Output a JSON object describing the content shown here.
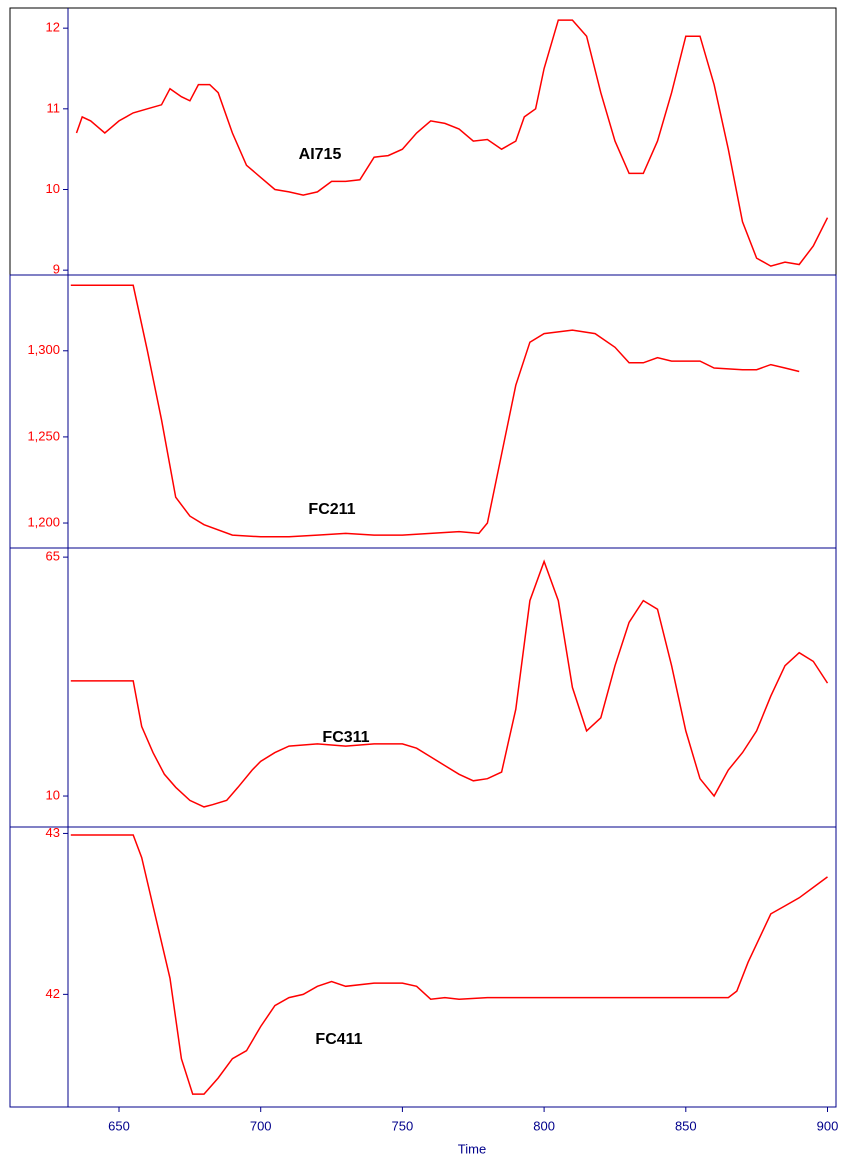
{
  "chart_data": [
    {
      "type": "line",
      "label": "AI715",
      "xlim": [
        632,
        903
      ],
      "ylim": [
        8.94,
        12.25
      ],
      "yticks": [
        9,
        10,
        11,
        12
      ],
      "series": [
        {
          "name": "AI715",
          "color": "#ff0000",
          "x": [
            635,
            637,
            640,
            645,
            650,
            655,
            660,
            665,
            668,
            672,
            675,
            678,
            682,
            685,
            690,
            695,
            700,
            705,
            710,
            715,
            720,
            725,
            730,
            735,
            740,
            745,
            750,
            755,
            760,
            765,
            770,
            775,
            780,
            785,
            790,
            793,
            797,
            800,
            805,
            810,
            815,
            820,
            825,
            830,
            835,
            840,
            845,
            850,
            855,
            860,
            865,
            870,
            875,
            880,
            885,
            890,
            895,
            900
          ],
          "values": [
            10.7,
            10.9,
            10.85,
            10.7,
            10.85,
            10.95,
            11.0,
            11.05,
            11.25,
            11.15,
            11.1,
            11.3,
            11.3,
            11.2,
            10.7,
            10.3,
            10.15,
            10.0,
            9.97,
            9.93,
            9.97,
            10.1,
            10.1,
            10.12,
            10.4,
            10.42,
            10.5,
            10.7,
            10.85,
            10.82,
            10.75,
            10.6,
            10.62,
            10.5,
            10.6,
            10.9,
            11.0,
            11.5,
            12.1,
            12.1,
            11.9,
            11.2,
            10.6,
            10.2,
            10.2,
            10.6,
            11.2,
            11.9,
            11.9,
            11.3,
            10.5,
            9.6,
            9.15,
            9.05,
            9.1,
            9.07,
            9.3,
            9.65
          ]
        }
      ]
    },
    {
      "type": "line",
      "label": "FC211",
      "xlim": [
        632,
        903
      ],
      "ylim": [
        1185.5,
        1344
      ],
      "yticks": [
        {
          "value": 1200,
          "label": "1,200"
        },
        {
          "value": 1250,
          "label": "1,250"
        },
        {
          "value": 1300,
          "label": "1,300"
        }
      ],
      "series": [
        {
          "name": "FC211",
          "color": "#ff0000",
          "x": [
            633,
            655,
            660,
            665,
            670,
            675,
            680,
            690,
            700,
            710,
            720,
            730,
            740,
            750,
            760,
            770,
            777,
            780,
            785,
            790,
            795,
            800,
            810,
            818,
            825,
            830,
            835,
            840,
            845,
            855,
            860,
            870,
            875,
            880,
            885,
            890
          ],
          "values": [
            1338,
            1338,
            1300,
            1260,
            1215,
            1204,
            1199,
            1193,
            1192,
            1192,
            1193,
            1194,
            1193,
            1193,
            1194,
            1195,
            1194,
            1200,
            1240,
            1280,
            1305,
            1310,
            1312,
            1310,
            1302,
            1293,
            1293,
            1296,
            1294,
            1294,
            1290,
            1289,
            1289,
            1292,
            1290,
            1288
          ]
        }
      ]
    },
    {
      "type": "line",
      "label": "FC311",
      "xlim": [
        632,
        903
      ],
      "ylim": [
        2.87,
        67.1
      ],
      "yticks": [
        10,
        65
      ],
      "series": [
        {
          "name": "FC311",
          "color": "#ff0000",
          "x": [
            633,
            655,
            658,
            662,
            666,
            670,
            675,
            680,
            683,
            688,
            692,
            697,
            700,
            705,
            710,
            720,
            730,
            740,
            750,
            755,
            760,
            765,
            770,
            775,
            780,
            785,
            790,
            795,
            800,
            805,
            810,
            815,
            820,
            825,
            830,
            835,
            840,
            845,
            850,
            855,
            860,
            865,
            870,
            875,
            880,
            885,
            890,
            895,
            900
          ],
          "values": [
            36.5,
            36.5,
            26,
            20,
            15,
            12,
            9,
            7.5,
            8,
            9,
            12,
            16,
            18,
            20,
            21.5,
            22,
            21.5,
            22,
            22,
            21,
            19,
            17,
            15,
            13.5,
            14,
            15.5,
            30,
            55,
            64,
            55,
            35,
            25,
            28,
            40,
            50,
            55,
            53,
            40,
            25,
            14,
            10,
            16,
            20,
            25,
            33,
            40,
            43,
            41,
            36
          ]
        }
      ]
    },
    {
      "type": "line",
      "label": "FC411",
      "xlim": [
        632,
        903
      ],
      "ylim": [
        41.3,
        43.04
      ],
      "yticks": [
        42,
        43
      ],
      "xticks": [
        650,
        700,
        750,
        800,
        850,
        900
      ],
      "xlabel": "Time",
      "series": [
        {
          "name": "FC411",
          "color": "#ff0000",
          "x": [
            633,
            655,
            658,
            662,
            668,
            672,
            676,
            680,
            685,
            690,
            695,
            700,
            705,
            710,
            715,
            720,
            725,
            730,
            740,
            750,
            755,
            760,
            765,
            770,
            780,
            800,
            865,
            868,
            872,
            880,
            885,
            890,
            900
          ],
          "values": [
            42.99,
            42.99,
            42.85,
            42.55,
            42.1,
            41.6,
            41.38,
            41.38,
            41.48,
            41.6,
            41.65,
            41.8,
            41.93,
            41.98,
            42.0,
            42.05,
            42.08,
            42.05,
            42.07,
            42.07,
            42.05,
            41.97,
            41.98,
            41.97,
            41.98,
            41.98,
            41.98,
            42.02,
            42.2,
            42.5,
            42.55,
            42.6,
            42.73
          ]
        }
      ]
    }
  ]
}
